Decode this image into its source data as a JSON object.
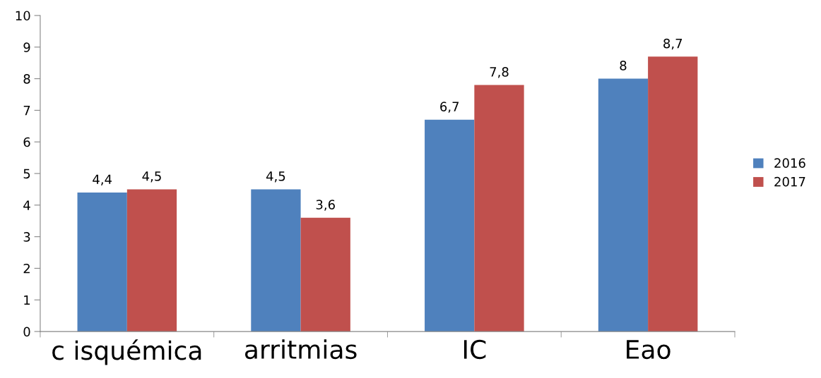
{
  "chart_data": {
    "type": "bar",
    "categories": [
      "c isquémica",
      "arritmias",
      "IC",
      "Eao"
    ],
    "series": [
      {
        "name": "2016",
        "color": "#4f81bd",
        "values": [
          4.4,
          4.5,
          6.7,
          8
        ],
        "value_labels": [
          "4,4",
          "4,5",
          "6,7",
          "8"
        ]
      },
      {
        "name": "2017",
        "color": "#c0504d",
        "values": [
          4.5,
          3.6,
          7.8,
          8.7
        ],
        "value_labels": [
          "4,5",
          "3,6",
          "7,8",
          "8,7"
        ]
      }
    ],
    "ylim": [
      0,
      10
    ],
    "yticks": [
      0,
      1,
      2,
      3,
      4,
      5,
      6,
      7,
      8,
      9,
      10
    ],
    "grid": false,
    "legend": "right"
  }
}
